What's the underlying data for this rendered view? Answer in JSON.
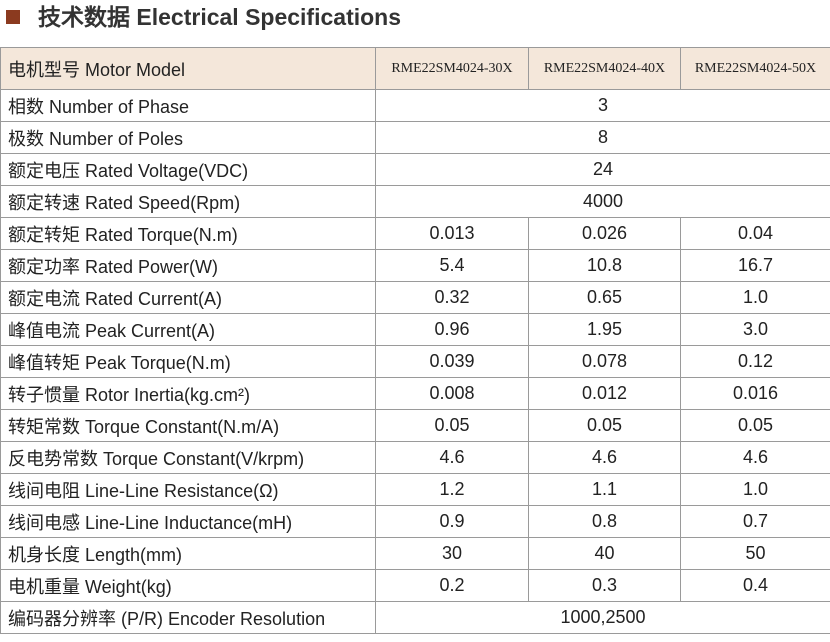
{
  "header": {
    "title": "技术数据 Electrical Specifications"
  },
  "table": {
    "columns": [
      "电机型号 Motor Model",
      "RME22SM4024-30X",
      "RME22SM4024-40X",
      "RME22SM4024-50X"
    ],
    "rows": [
      {
        "label": "相数 Number of Phase",
        "values": [
          "3"
        ]
      },
      {
        "label": "极数 Number of Poles",
        "values": [
          "8"
        ]
      },
      {
        "label": "额定电压 Rated Voltage(VDC)",
        "values": [
          "24"
        ]
      },
      {
        "label": "额定转速 Rated Speed(Rpm)",
        "values": [
          "4000"
        ]
      },
      {
        "label": "额定转矩 Rated Torque(N.m)",
        "values": [
          "0.013",
          "0.026",
          "0.04"
        ]
      },
      {
        "label": "额定功率 Rated Power(W)",
        "values": [
          "5.4",
          "10.8",
          "16.7"
        ]
      },
      {
        "label": "额定电流 Rated Current(A)",
        "values": [
          "0.32",
          "0.65",
          "1.0"
        ]
      },
      {
        "label": "峰值电流 Peak Current(A)",
        "values": [
          "0.96",
          "1.95",
          "3.0"
        ]
      },
      {
        "label": "峰值转矩 Peak Torque(N.m)",
        "values": [
          "0.039",
          "0.078",
          "0.12"
        ]
      },
      {
        "label": "转子惯量 Rotor Inertia(kg.cm²)",
        "values": [
          "0.008",
          "0.012",
          "0.016"
        ]
      },
      {
        "label": "转矩常数 Torque Constant(N.m/A)",
        "values": [
          "0.05",
          "0.05",
          "0.05"
        ]
      },
      {
        "label": "反电势常数 Torque Constant(V/krpm)",
        "values": [
          "4.6",
          "4.6",
          "4.6"
        ]
      },
      {
        "label": "线间电阻 Line-Line Resistance(Ω)",
        "values": [
          "1.2",
          "1.1",
          "1.0"
        ]
      },
      {
        "label": "线间电感 Line-Line Inductance(mH)",
        "values": [
          "0.9",
          "0.8",
          "0.7"
        ]
      },
      {
        "label": "机身长度 Length(mm)",
        "values": [
          "30",
          "40",
          "50"
        ]
      },
      {
        "label": "电机重量 Weight(kg)",
        "values": [
          "0.2",
          "0.3",
          "0.4"
        ]
      },
      {
        "label": "编码器分辨率 (P/R) Encoder Resolution",
        "values": [
          "1000,2500"
        ]
      }
    ]
  }
}
